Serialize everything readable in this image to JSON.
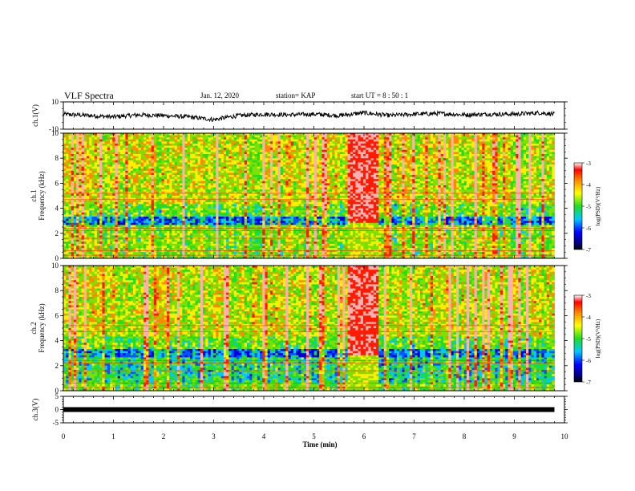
{
  "header": {
    "title": "VLF Spectra",
    "date": "Jan. 12, 2020",
    "station": "station= KAP",
    "start": "start  UT =   8 : 50 : 1"
  },
  "chart_data": [
    {
      "type": "line",
      "panel": "waveform-ch1",
      "ylabel": "ch.1(V)",
      "ylim": [
        -10,
        10
      ],
      "yticks": [
        "10",
        "-10"
      ],
      "x": [
        0,
        0.5,
        1,
        1.5,
        2,
        2.5,
        3,
        3.5,
        4,
        4.5,
        5,
        5.5,
        6,
        6.5,
        7,
        7.5,
        8,
        8.5,
        9,
        9.5,
        9.8
      ],
      "values": [
        1,
        0,
        -1,
        0.5,
        0,
        -1,
        -3,
        0,
        1,
        0.5,
        1,
        0,
        2,
        0,
        1,
        1.5,
        0.5,
        1,
        1,
        2,
        1
      ]
    },
    {
      "type": "heatmap",
      "panel": "spectrogram-ch1",
      "ylabel": "ch.1\nFrequency (kHz)",
      "ylim": [
        0,
        10
      ],
      "yticks": [
        "0",
        "2",
        "4",
        "6",
        "8",
        "10"
      ],
      "colorbar": {
        "label": "log(PSD)(V²/Hz)",
        "range": [
          -7,
          -3
        ],
        "ticks": [
          "-3",
          "-4",
          "-5",
          "-6",
          "-7"
        ]
      }
    },
    {
      "type": "heatmap",
      "panel": "spectrogram-ch2",
      "ylabel": "ch.2\nFrequency (kHz)",
      "ylim": [
        0,
        10
      ],
      "yticks": [
        "0",
        "2",
        "4",
        "6",
        "8",
        "10"
      ],
      "colorbar": {
        "label": "log(PSD)(V²/Hz)",
        "range": [
          -7,
          -3
        ],
        "ticks": [
          "-3",
          "-4",
          "-5",
          "-6",
          "-7"
        ]
      }
    },
    {
      "type": "line",
      "panel": "waveform-ch3",
      "ylabel": "ch.3(V)",
      "ylim": [
        -5,
        5
      ],
      "yticks": [
        "5",
        "0",
        "-5"
      ],
      "x": [
        0,
        9.8
      ],
      "values": [
        0,
        0
      ]
    }
  ],
  "xaxis": {
    "label": "Time (min)",
    "range": [
      0,
      10
    ],
    "ticks": [
      "0",
      "1",
      "2",
      "3",
      "4",
      "5",
      "6",
      "7",
      "8",
      "9",
      "10"
    ]
  },
  "colors": {
    "high": "#ff2a00",
    "mid": "#22dd22",
    "low": "#0000ee",
    "lowest": "#000000"
  }
}
